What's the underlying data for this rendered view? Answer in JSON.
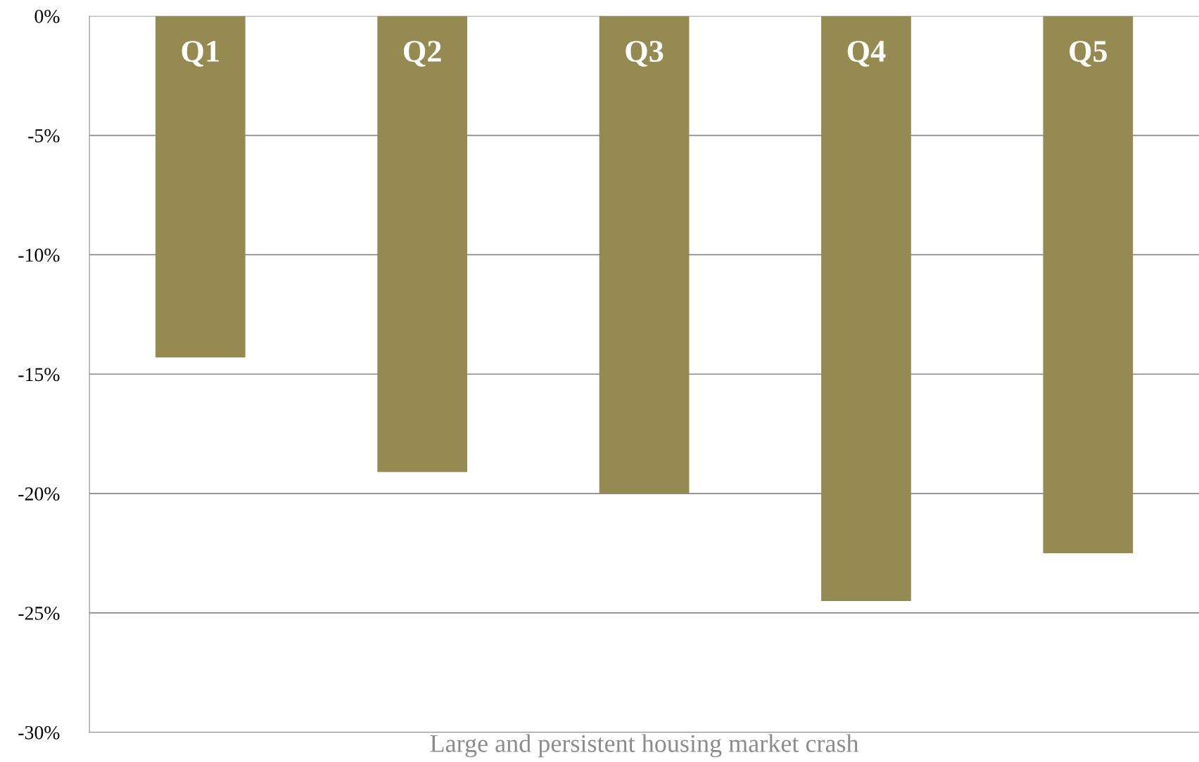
{
  "chart_data": {
    "type": "bar",
    "xlabel": "Large and persistent housing market crash",
    "categories": [
      "Q1",
      "Q2",
      "Q3",
      "Q4",
      "Q5"
    ],
    "values": [
      -14.3,
      -19.1,
      -20.0,
      -24.5,
      -22.5
    ],
    "color": "#958b52",
    "ylim": [
      -30,
      0
    ],
    "yticks": [
      {
        "value": 0,
        "label": "0%"
      },
      {
        "value": -5,
        "label": "-5%"
      },
      {
        "value": -10,
        "label": "-10%"
      },
      {
        "value": -15,
        "label": "-15%"
      },
      {
        "value": -20,
        "label": "-20%"
      },
      {
        "value": -25,
        "label": "-25%"
      },
      {
        "value": -30,
        "label": "-30%"
      }
    ],
    "grid": "y",
    "legend": false
  }
}
